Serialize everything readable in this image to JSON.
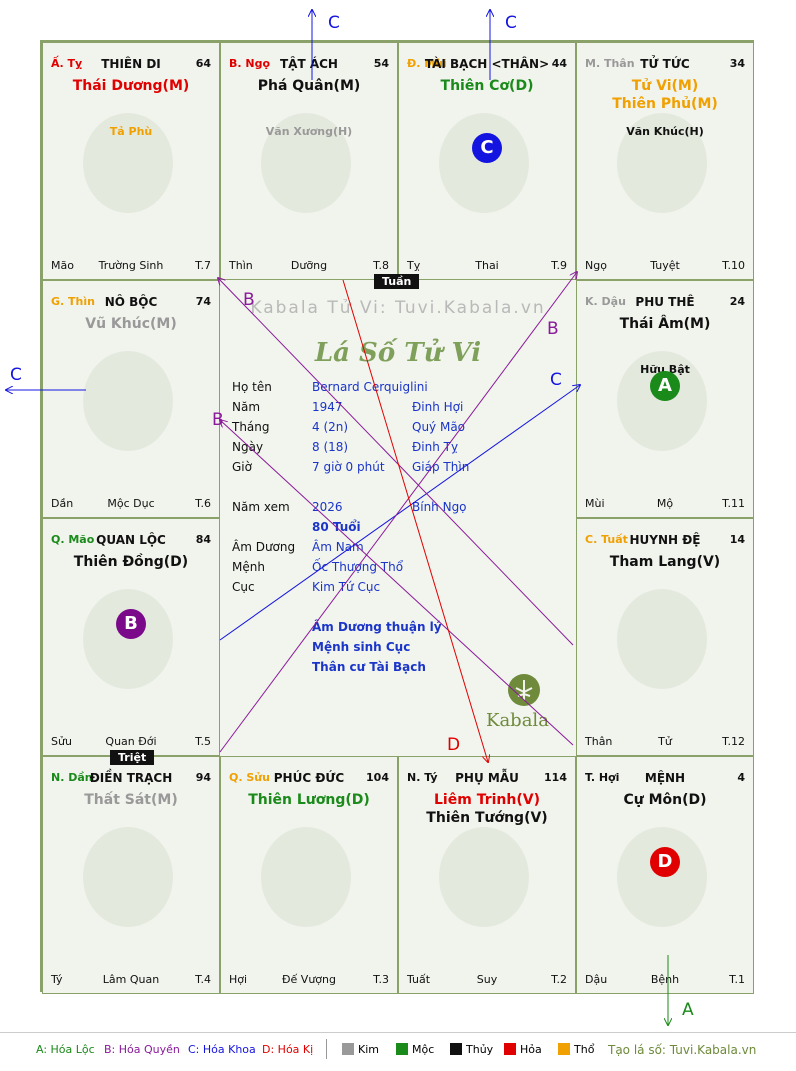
{
  "palaces": [
    {
      "can": "Ấ. Tỵ",
      "can_color": "#e00000",
      "name": "THIÊN DI",
      "num": "64",
      "stars": [
        {
          "t": "Thái Dương(M)",
          "c": "#e00000"
        }
      ],
      "minor": {
        "t": "Tả Phù",
        "c": "#f0a000"
      },
      "badge": null,
      "foot": [
        "Mão",
        "Trường Sinh",
        "T.7"
      ]
    },
    {
      "can": "B. Ngọ",
      "can_color": "#e00000",
      "name": "TẬT ÁCH",
      "num": "54",
      "stars": [
        {
          "t": "Phá Quân(M)",
          "c": "#111111"
        }
      ],
      "minor": {
        "t": "Văn Xương(H)",
        "c": "#999999"
      },
      "badge": null,
      "foot": [
        "Thìn",
        "Dưỡng",
        "T.8"
      ]
    },
    {
      "can": "Đ. Mùi",
      "can_color": "#f0a000",
      "name": "TÀI BẠCH <THÂN>",
      "num": "44",
      "stars": [
        {
          "t": "Thiên Cơ(D)",
          "c": "#1a8a1a"
        }
      ],
      "minor": null,
      "badge": {
        "t": "C",
        "c": "#1414e0"
      },
      "foot": [
        "Tỵ",
        "Thai",
        "T.9"
      ]
    },
    {
      "can": "M. Thân",
      "can_color": "#999999",
      "name": "TỬ TỨC",
      "num": "34",
      "stars": [
        {
          "t": "Tử Vi(M)",
          "c": "#f0a000"
        },
        {
          "t": "Thiên Phủ(M)",
          "c": "#f0a000"
        }
      ],
      "minor": {
        "t": "Văn Khúc(H)",
        "c": "#111111"
      },
      "badge": null,
      "foot": [
        "Ngọ",
        "Tuyệt",
        "T.10"
      ]
    },
    {
      "can": "K. Dậu",
      "can_color": "#999999",
      "name": "PHU THÊ",
      "num": "24",
      "stars": [
        {
          "t": "Thái Âm(M)",
          "c": "#111111"
        }
      ],
      "minor": {
        "t": "Hữu Bật",
        "c": "#111111"
      },
      "badge": {
        "t": "A",
        "c": "#1a8a1a"
      },
      "foot": [
        "Mùi",
        "Mộ",
        "T.11"
      ]
    },
    {
      "can": "C. Tuất",
      "can_color": "#f0a000",
      "name": "HUYNH ĐỆ",
      "num": "14",
      "stars": [
        {
          "t": "Tham Lang(V)",
          "c": "#111111"
        }
      ],
      "minor": null,
      "badge": null,
      "foot": [
        "Thân",
        "Tử",
        "T.12"
      ]
    },
    {
      "can": "T. Hợi",
      "can_color": "#111111",
      "name": "MỆNH",
      "num": "4",
      "stars": [
        {
          "t": "Cự Môn(D)",
          "c": "#111111"
        }
      ],
      "minor": null,
      "badge": {
        "t": "D",
        "c": "#e00000"
      },
      "foot": [
        "Dậu",
        "Bệnh",
        "T.1"
      ]
    },
    {
      "can": "N. Tý",
      "can_color": "#111111",
      "name": "PHỤ MẪU",
      "num": "114",
      "stars": [
        {
          "t": "Liêm Trinh(V)",
          "c": "#e00000"
        },
        {
          "t": "Thiên Tướng(V)",
          "c": "#111111"
        }
      ],
      "minor": null,
      "badge": null,
      "foot": [
        "Tuất",
        "Suy",
        "T.2"
      ]
    },
    {
      "can": "Q. Sửu",
      "can_color": "#f0a000",
      "name": "PHÚC ĐỨC",
      "num": "104",
      "stars": [
        {
          "t": "Thiên Lương(D)",
          "c": "#1a8a1a"
        }
      ],
      "minor": null,
      "badge": null,
      "foot": [
        "Hợi",
        "Đế Vượng",
        "T.3"
      ]
    },
    {
      "can": "N. Dần",
      "can_color": "#1a8a1a",
      "name": "ĐIỀN TRẠCH",
      "num": "94",
      "stars": [
        {
          "t": "Thất Sát(M)",
          "c": "#999999"
        }
      ],
      "minor": null,
      "badge": null,
      "foot": [
        "Tý",
        "Lâm Quan",
        "T.4"
      ]
    },
    {
      "can": "Q. Mão",
      "can_color": "#1a8a1a",
      "name": "QUAN LỘC",
      "num": "84",
      "stars": [
        {
          "t": "Thiên Đồng(D)",
          "c": "#111111"
        }
      ],
      "minor": null,
      "badge": {
        "t": "B",
        "c": "#7a0a8a"
      },
      "foot": [
        "Sửu",
        "Quan Đới",
        "T.5"
      ]
    },
    {
      "can": "G. Thìn",
      "can_color": "#f0a000",
      "name": "NÔ BỘC",
      "num": "74",
      "stars": [
        {
          "t": "Vũ Khúc(M)",
          "c": "#999999"
        }
      ],
      "minor": null,
      "badge": null,
      "foot": [
        "Dần",
        "Mộc Dục",
        "T.6"
      ]
    }
  ],
  "center": {
    "watermark": "Kabala Tử Vi: Tuvi.Kabala.vn",
    "title": "Lá Số Tử Vi",
    "rows": [
      {
        "k": "Họ tên",
        "v": "Bernard Cerquiglini",
        "w": ""
      },
      {
        "k": "Năm",
        "v": "1947",
        "w": "Đinh Hợi"
      },
      {
        "k": "Tháng",
        "v": "4  (2n)",
        "w": "Quý Mão"
      },
      {
        "k": "Ngày",
        "v": "8  (18)",
        "w": "Đinh Tỵ"
      },
      {
        "k": "Giờ",
        "v": "7 giờ 0 phút",
        "w": "Giáp Thìn"
      },
      {
        "k": "Năm xem",
        "v": "2026",
        "w": "Bính Ngọ"
      },
      {
        "k": "",
        "v": "80 Tuổi",
        "w": ""
      },
      {
        "k": "Âm Dương",
        "v": "Âm Nam",
        "w": ""
      },
      {
        "k": "Mệnh",
        "v": "Ốc Thượng Thổ",
        "w": ""
      },
      {
        "k": "Cục",
        "v": "Kim Tứ Cục",
        "w": ""
      }
    ],
    "notes": [
      "Âm Dương thuận lý",
      "Mệnh sinh Cục",
      "Thân cư Tài Bạch"
    ],
    "brand": "Kabala"
  },
  "tags": {
    "tuan": "Tuần",
    "triet": "Triệt"
  },
  "arrow_labels": [
    "C",
    "C",
    "C",
    "C",
    "B",
    "B",
    "B",
    "D",
    "A"
  ],
  "legend": {
    "a": "A: Hóa Lộc",
    "b": "B: Hóa Quyền",
    "c": "C: Hóa Khoa",
    "d": "D: Hóa Kị",
    "elements": [
      {
        "t": "Kim",
        "c": "#999999"
      },
      {
        "t": "Mộc",
        "c": "#1a8a1a"
      },
      {
        "t": "Thủy",
        "c": "#111111"
      },
      {
        "t": "Hỏa",
        "c": "#e00000"
      },
      {
        "t": "Thổ",
        "c": "#f0a000"
      }
    ],
    "site": "Tạo lá số: Tuvi.Kabala.vn"
  }
}
